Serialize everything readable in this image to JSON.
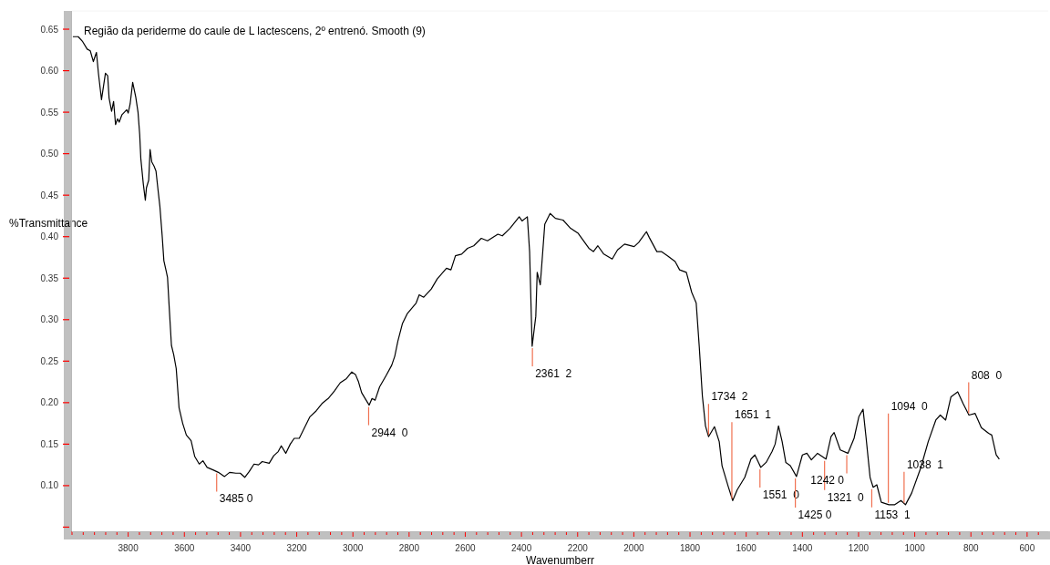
{
  "chart_data": {
    "type": "line",
    "title": "Região da periderme do caule de L lactescens, 2º entrenó. Smooth (9)",
    "xlabel": "Wavenumberr",
    "ylabel": "%Transmittance",
    "xlim": [
      4000,
      525
    ],
    "ylim": [
      0.045,
      0.672
    ],
    "xticks": [
      {
        "value": 4000,
        "label": null
      },
      {
        "value": 3960,
        "label": null
      },
      {
        "value": 3920,
        "label": null
      },
      {
        "value": 3880,
        "label": null
      },
      {
        "value": 3840,
        "label": null
      },
      3800,
      {
        "value": 3760,
        "label": null
      },
      {
        "value": 3720,
        "label": null
      },
      {
        "value": 3680,
        "label": null
      },
      {
        "value": 3640,
        "label": null
      },
      3600,
      {
        "value": 3560,
        "label": null
      },
      {
        "value": 3520,
        "label": null
      },
      {
        "value": 3480,
        "label": null
      },
      {
        "value": 3440,
        "label": null
      },
      3400,
      {
        "value": 3360,
        "label": null
      },
      {
        "value": 3320,
        "label": null
      },
      {
        "value": 3280,
        "label": null
      },
      {
        "value": 3240,
        "label": null
      },
      3200,
      {
        "value": 3160,
        "label": null
      },
      {
        "value": 3120,
        "label": null
      },
      {
        "value": 3080,
        "label": null
      },
      {
        "value": 3040,
        "label": null
      },
      3000,
      {
        "value": 2960,
        "label": null
      },
      {
        "value": 2920,
        "label": null
      },
      {
        "value": 2880,
        "label": null
      },
      {
        "value": 2840,
        "label": null
      },
      2800,
      {
        "value": 2760,
        "label": null
      },
      {
        "value": 2720,
        "label": null
      },
      {
        "value": 2680,
        "label": null
      },
      {
        "value": 2640,
        "label": null
      },
      2600,
      {
        "value": 2560,
        "label": null
      },
      {
        "value": 2520,
        "label": null
      },
      {
        "value": 2480,
        "label": null
      },
      {
        "value": 2440,
        "label": null
      },
      2400,
      {
        "value": 2360,
        "label": null
      },
      {
        "value": 2320,
        "label": null
      },
      {
        "value": 2280,
        "label": null
      },
      {
        "value": 2240,
        "label": null
      },
      2200,
      {
        "value": 2160,
        "label": null
      },
      {
        "value": 2120,
        "label": null
      },
      {
        "value": 2080,
        "label": null
      },
      {
        "value": 2040,
        "label": null
      },
      2000,
      {
        "value": 1960,
        "label": null
      },
      {
        "value": 1920,
        "label": null
      },
      {
        "value": 1880,
        "label": null
      },
      {
        "value": 1840,
        "label": null
      },
      1800,
      {
        "value": 1760,
        "label": null
      },
      {
        "value": 1720,
        "label": null
      },
      {
        "value": 1680,
        "label": null
      },
      {
        "value": 1640,
        "label": null
      },
      1600,
      {
        "value": 1560,
        "label": null
      },
      {
        "value": 1520,
        "label": null
      },
      {
        "value": 1480,
        "label": null
      },
      {
        "value": 1440,
        "label": null
      },
      1400,
      {
        "value": 1360,
        "label": null
      },
      {
        "value": 1320,
        "label": null
      },
      {
        "value": 1280,
        "label": null
      },
      {
        "value": 1240,
        "label": null
      },
      1200,
      {
        "value": 1160,
        "label": null
      },
      {
        "value": 1120,
        "label": null
      },
      {
        "value": 1080,
        "label": null
      },
      {
        "value": 1040,
        "label": null
      },
      1000,
      {
        "value": 960,
        "label": null
      },
      {
        "value": 920,
        "label": null
      },
      {
        "value": 880,
        "label": null
      },
      {
        "value": 840,
        "label": null
      },
      800,
      {
        "value": 760,
        "label": null
      },
      {
        "value": 720,
        "label": null
      },
      {
        "value": 680,
        "label": null
      },
      {
        "value": 640,
        "label": null
      },
      600,
      {
        "value": 560,
        "label": null
      }
    ],
    "yticks": [
      {
        "value": 0.05,
        "label": null
      },
      {
        "value": 0.1,
        "label": "0.10"
      },
      0.15,
      {
        "value": 0.2,
        "label": "0.20"
      },
      0.25,
      {
        "value": 0.3,
        "label": "0.30"
      },
      0.35,
      {
        "value": 0.4,
        "label": "0.40"
      },
      0.45,
      {
        "value": 0.5,
        "label": "0.50"
      },
      0.55,
      {
        "value": 0.6,
        "label": "0.60"
      },
      0.65
    ],
    "grid": false,
    "marker": "none",
    "line_style": "solid",
    "series": [
      {
        "color": "#000000",
        "x": [
          3997,
          3978,
          3962,
          3946,
          3935,
          3924,
          3913,
          3906,
          3895,
          3881,
          3873,
          3868,
          3859,
          3852,
          3845,
          3838,
          3832,
          3822,
          3805,
          3800,
          3793,
          3784,
          3773,
          3765,
          3759,
          3755,
          3746,
          3739,
          3735,
          3727,
          3722,
          3716,
          3708,
          3701,
          3694,
          3687,
          3679,
          3673,
          3665,
          3660,
          3654,
          3646,
          3638,
          3629,
          3619,
          3606,
          3593,
          3576,
          3563,
          3547,
          3534,
          3519,
          3498,
          3479,
          3457,
          3439,
          3417,
          3401,
          3385,
          3369,
          3352,
          3336,
          3323,
          3298,
          3282,
          3266,
          3255,
          3239,
          3223,
          3209,
          3191,
          3175,
          3153,
          3131,
          3110,
          3088,
          3066,
          3045,
          3023,
          3004,
          2991,
          2980,
          2969,
          2953,
          2942,
          2932,
          2921,
          2905,
          2883,
          2862,
          2851,
          2840,
          2824,
          2807,
          2775,
          2764,
          2748,
          2721,
          2700,
          2667,
          2651,
          2635,
          2613,
          2592,
          2570,
          2543,
          2521,
          2484,
          2468,
          2441,
          2408,
          2398,
          2379,
          2371,
          2362,
          2349,
          2344,
          2333,
          2317,
          2298,
          2279,
          2252,
          2225,
          2198,
          2160,
          2144,
          2128,
          2107,
          2077,
          2058,
          2033,
          1999,
          1983,
          1955,
          1945,
          1918,
          1902,
          1880,
          1853,
          1837,
          1813,
          1794,
          1778,
          1767,
          1756,
          1745,
          1734,
          1713,
          1696,
          1686,
          1664,
          1648,
          1632,
          1605,
          1583,
          1569,
          1548,
          1529,
          1508,
          1497,
          1485,
          1472,
          1459,
          1443,
          1421,
          1400,
          1384,
          1368,
          1346,
          1316,
          1298,
          1287,
          1265,
          1238,
          1216,
          1199,
          1184,
          1173,
          1159,
          1148,
          1135,
          1119,
          1092,
          1071,
          1049,
          1033,
          1011,
          979,
          952,
          925,
          909,
          890,
          871,
          847,
          828,
          807,
          785,
          763,
          737,
          726,
          710,
          699
        ],
        "values": [
          0.641,
          0.641,
          0.635,
          0.626,
          0.624,
          0.611,
          0.622,
          0.597,
          0.565,
          0.597,
          0.594,
          0.567,
          0.551,
          0.563,
          0.535,
          0.542,
          0.538,
          0.547,
          0.553,
          0.549,
          0.56,
          0.586,
          0.568,
          0.55,
          0.523,
          0.494,
          0.463,
          0.444,
          0.459,
          0.468,
          0.505,
          0.49,
          0.485,
          0.479,
          0.457,
          0.436,
          0.401,
          0.371,
          0.359,
          0.351,
          0.315,
          0.269,
          0.258,
          0.241,
          0.194,
          0.175,
          0.161,
          0.154,
          0.135,
          0.126,
          0.13,
          0.122,
          0.119,
          0.116,
          0.111,
          0.116,
          0.115,
          0.115,
          0.11,
          0.117,
          0.126,
          0.125,
          0.129,
          0.127,
          0.136,
          0.141,
          0.148,
          0.139,
          0.15,
          0.157,
          0.157,
          0.168,
          0.183,
          0.19,
          0.199,
          0.205,
          0.214,
          0.224,
          0.229,
          0.237,
          0.234,
          0.225,
          0.212,
          0.203,
          0.197,
          0.205,
          0.203,
          0.219,
          0.232,
          0.245,
          0.256,
          0.274,
          0.295,
          0.307,
          0.32,
          0.33,
          0.327,
          0.337,
          0.349,
          0.362,
          0.36,
          0.377,
          0.379,
          0.386,
          0.389,
          0.398,
          0.395,
          0.403,
          0.401,
          0.41,
          0.424,
          0.419,
          0.424,
          0.382,
          0.268,
          0.304,
          0.357,
          0.342,
          0.415,
          0.428,
          0.422,
          0.42,
          0.41,
          0.404,
          0.386,
          0.382,
          0.389,
          0.379,
          0.373,
          0.384,
          0.391,
          0.388,
          0.393,
          0.406,
          0.399,
          0.382,
          0.382,
          0.377,
          0.37,
          0.36,
          0.357,
          0.333,
          0.32,
          0.267,
          0.208,
          0.172,
          0.159,
          0.171,
          0.153,
          0.124,
          0.099,
          0.082,
          0.095,
          0.11,
          0.132,
          0.137,
          0.122,
          0.128,
          0.141,
          0.15,
          0.172,
          0.153,
          0.128,
          0.124,
          0.111,
          0.137,
          0.139,
          0.131,
          0.139,
          0.132,
          0.159,
          0.164,
          0.143,
          0.139,
          0.157,
          0.183,
          0.192,
          0.157,
          0.11,
          0.098,
          0.101,
          0.08,
          0.077,
          0.077,
          0.082,
          0.077,
          0.091,
          0.121,
          0.153,
          0.179,
          0.185,
          0.179,
          0.207,
          0.213,
          0.199,
          0.185,
          0.187,
          0.17,
          0.163,
          0.161,
          0.137,
          0.132
        ]
      }
    ],
    "annotations": [
      {
        "text": "3485 0",
        "x": 3485,
        "y": 0.117
      },
      {
        "text": "2944  0",
        "x": 2944,
        "y": 0.197
      },
      {
        "text": "2361  2",
        "x": 2361,
        "y": 0.268
      },
      {
        "text": "1734  2",
        "x": 1734,
        "y": 0.159
      },
      {
        "text": "1651  1",
        "x": 1651,
        "y": 0.082
      },
      {
        "text": "1551  0",
        "x": 1551,
        "y": 0.122
      },
      {
        "text": "1425 0",
        "x": 1425,
        "y": 0.111
      },
      {
        "text": "1321  0",
        "x": 1321,
        "y": 0.132
      },
      {
        "text": "1242 0",
        "x": 1242,
        "y": 0.139
      },
      {
        "text": "1153  1",
        "x": 1153,
        "y": 0.098
      },
      {
        "text": "1094  0",
        "x": 1094,
        "y": 0.077
      },
      {
        "text": "1038  1",
        "x": 1038,
        "y": 0.077
      },
      {
        "text": "808  0",
        "x": 808,
        "y": 0.185
      }
    ]
  }
}
